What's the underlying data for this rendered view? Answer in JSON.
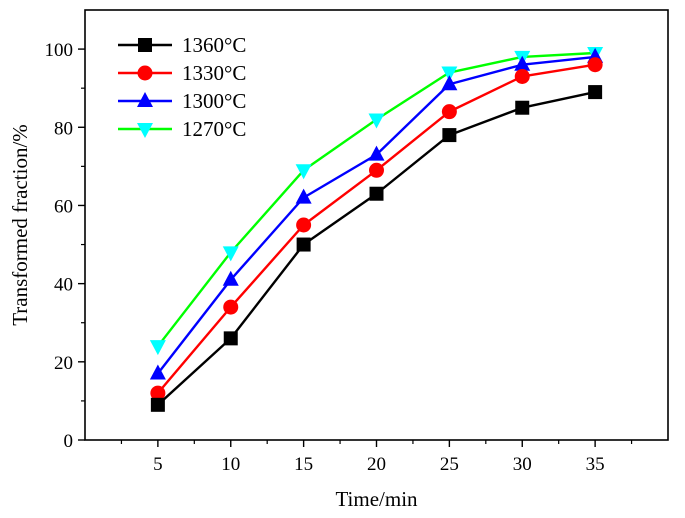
{
  "chart_data": {
    "type": "line",
    "title": "",
    "xlabel": "Time/min",
    "ylabel": "Transformed fraction/%",
    "x": [
      5,
      10,
      15,
      20,
      25,
      30,
      35
    ],
    "x_ticks": [
      "5",
      "10",
      "15",
      "20",
      "25",
      "30",
      "35"
    ],
    "y_ticks": [
      "0",
      "20",
      "40",
      "60",
      "80",
      "100"
    ],
    "xlim": [
      0,
      40
    ],
    "ylim": [
      0,
      110
    ],
    "grid": false,
    "legend_position": "top-left",
    "series": [
      {
        "name": "1360°C",
        "color": "#000000",
        "marker": "square",
        "values": [
          9,
          26,
          50,
          63,
          78,
          85,
          89
        ]
      },
      {
        "name": "1330°C",
        "color": "#ff0000",
        "marker": "circle",
        "values": [
          12,
          34,
          55,
          69,
          84,
          93,
          96
        ]
      },
      {
        "name": "1300°C",
        "color": "#0000ff",
        "marker": "triangle-up",
        "values": [
          17,
          41,
          62,
          73,
          91,
          96,
          98
        ]
      },
      {
        "name": "1270°C",
        "color": "#00ff00",
        "marker_color": "#00ffff",
        "marker": "triangle-down",
        "values": [
          24,
          48,
          69,
          82,
          94,
          98,
          99
        ]
      }
    ]
  }
}
